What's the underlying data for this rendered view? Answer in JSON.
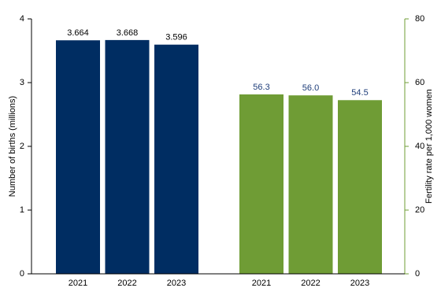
{
  "chart_data": {
    "type": "bar",
    "categories": [
      "2021",
      "2022",
      "2023",
      "2021",
      "2022",
      "2023"
    ],
    "ylabel": "Number of births (millions)",
    "y2label": "Fertility rate per 1,000 women",
    "ylim": [
      0,
      4
    ],
    "yticks": [
      0,
      1,
      2,
      3,
      4
    ],
    "y2lim": [
      0,
      80
    ],
    "y2ticks": [
      0,
      20,
      40,
      60,
      80
    ],
    "series": [
      {
        "color": "#002d62",
        "values": [
          3.664,
          3.668,
          3.596,
          null,
          null,
          null
        ]
      },
      {
        "color": "#6f9c35",
        "axis": "y2",
        "values": [
          null,
          null,
          null,
          56.3,
          56.0,
          54.5
        ],
        "value_labels": [
          null,
          null,
          null,
          "56.3",
          "56.0",
          "54.5"
        ]
      }
    ]
  }
}
